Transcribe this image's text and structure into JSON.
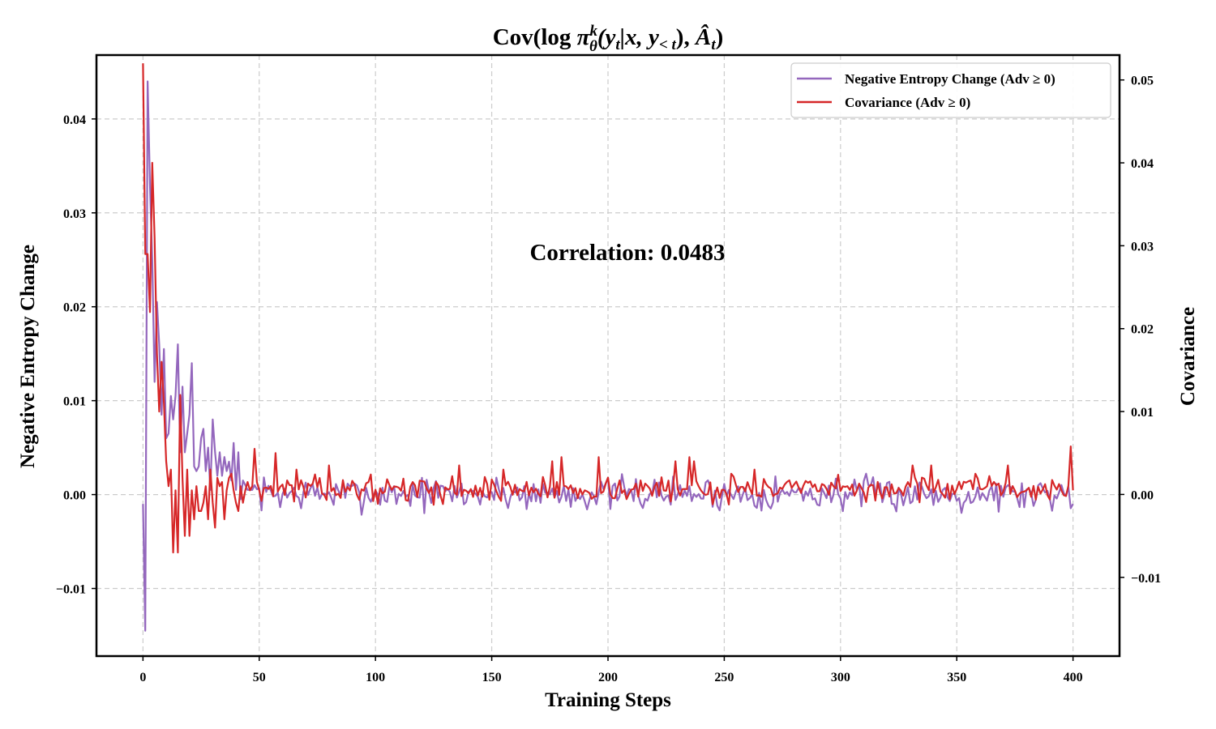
{
  "chart_data": {
    "type": "line",
    "title": "Cov(log π_θ^k(y_t|x, y_<t), Â_t)",
    "title_parts": {
      "prefix": "Cov(log ",
      "pi": "π",
      "sup": "k",
      "sub": "θ",
      "args": "(y",
      "t1": "t",
      "mid": "|x, y",
      "t2": "< t",
      "close": "), ",
      "A": "Â",
      "t3": "t",
      "end": ")"
    },
    "xlabel": "Training Steps",
    "ylabel_left": "Negative Entropy Change",
    "ylabel_right": "Covariance",
    "xlim": [
      -20,
      420
    ],
    "ylim_left": [
      -0.0172,
      0.0468
    ],
    "ylim_right": [
      -0.0195,
      0.053
    ],
    "x_ticks": [
      0,
      50,
      100,
      150,
      200,
      250,
      300,
      350,
      400
    ],
    "x_tick_labels": [
      "0",
      "50",
      "100",
      "150",
      "200",
      "250",
      "300",
      "350",
      "400"
    ],
    "y_left_ticks": [
      -0.01,
      0.0,
      0.01,
      0.02,
      0.03,
      0.04
    ],
    "y_left_tick_labels": [
      "−0.01",
      "0.00",
      "0.01",
      "0.02",
      "0.03",
      "0.04"
    ],
    "y_right_ticks": [
      -0.01,
      0.0,
      0.01,
      0.02,
      0.03,
      0.04,
      0.05
    ],
    "y_right_tick_labels": [
      "−0.01",
      "0.00",
      "0.01",
      "0.02",
      "0.03",
      "0.04",
      "0.05"
    ],
    "grid": true,
    "legend_position": "upper right",
    "annotation": "Correlation: 0.0483",
    "series": [
      {
        "name": "Negative Entropy Change (Adv ≥ 0)",
        "axis": "left",
        "color": "#9467bd",
        "x_start": 0,
        "x_step": 1,
        "head_values": [
          -0.001,
          -0.0145,
          0.044,
          0.033,
          0.025,
          0.012,
          0.0205,
          0.016,
          0.0085,
          0.0155,
          0.006,
          0.0065,
          0.0105,
          0.008,
          0.0105,
          0.016,
          0.0045,
          0.0115,
          0.0045,
          0.0065,
          0.0085,
          0.014,
          0.003,
          0.0025,
          0.003,
          0.006,
          0.007,
          0.0025,
          0.005,
          0.0005,
          0.008,
          0.0045,
          0.002,
          0.0045,
          0.002,
          0.004,
          0.0025,
          0.0035,
          0.0015,
          0.0055,
          0.0005,
          0.0045,
          -0.0005,
          0.0015,
          0.001,
          0.0005,
          0.0005,
          0.0005,
          0.001
        ],
        "tail_amplitude": 0.0011,
        "tail_seed": 7,
        "final_value": -0.001
      },
      {
        "name": "Covariance (Adv ≥ 0)",
        "axis": "right",
        "color": "#d62728",
        "x_start": 0,
        "x_step": 1,
        "head_values": [
          0.052,
          0.029,
          0.029,
          0.022,
          0.04,
          0.031,
          0.017,
          0.01,
          0.016,
          0.011,
          0.004,
          0.001,
          0.003,
          -0.007,
          0.0005,
          -0.007,
          0.012,
          0.002,
          -0.005,
          0.003,
          -0.005,
          0.0005,
          -0.003,
          0.001,
          -0.002,
          -0.002,
          -0.001,
          0.001,
          -0.003,
          0.003,
          -0.001,
          -0.004,
          0.002,
          0.001,
          0.0015,
          -0.003,
          0.0005,
          0.002,
          0.0025,
          0.0005,
          -0.001,
          -0.002,
          0.001,
          -0.001,
          0.0005,
          0.0015,
          0.0005,
          0.001,
          0.0055,
          0.0015
        ],
        "tail_amplitude": 0.0009,
        "tail_seed": 13,
        "spikes": [
          [
            57,
            0.005
          ],
          [
            66,
            0.003
          ],
          [
            80,
            0.0035
          ],
          [
            97,
            0.0015
          ],
          [
            136,
            0.0035
          ],
          [
            155,
            0.003
          ],
          [
            176,
            0.004
          ],
          [
            180,
            0.0045
          ],
          [
            196,
            0.0045
          ],
          [
            229,
            0.004
          ],
          [
            235,
            0.0045
          ],
          [
            237,
            0.004
          ],
          [
            253,
            0.0025
          ],
          [
            263,
            0.003
          ],
          [
            331,
            0.0035
          ],
          [
            339,
            0.0035
          ],
          [
            358,
            0.0025
          ],
          [
            372,
            0.0035
          ],
          [
            399,
            0.0058
          ]
        ],
        "final_value": 0.0005,
        "length": 401
      }
    ]
  },
  "legend": {
    "items": [
      {
        "label": "Negative Entropy Change (Adv ≥ 0)",
        "color": "#9467bd"
      },
      {
        "label": "Covariance (Adv ≥ 0)",
        "color": "#d62728"
      }
    ]
  }
}
